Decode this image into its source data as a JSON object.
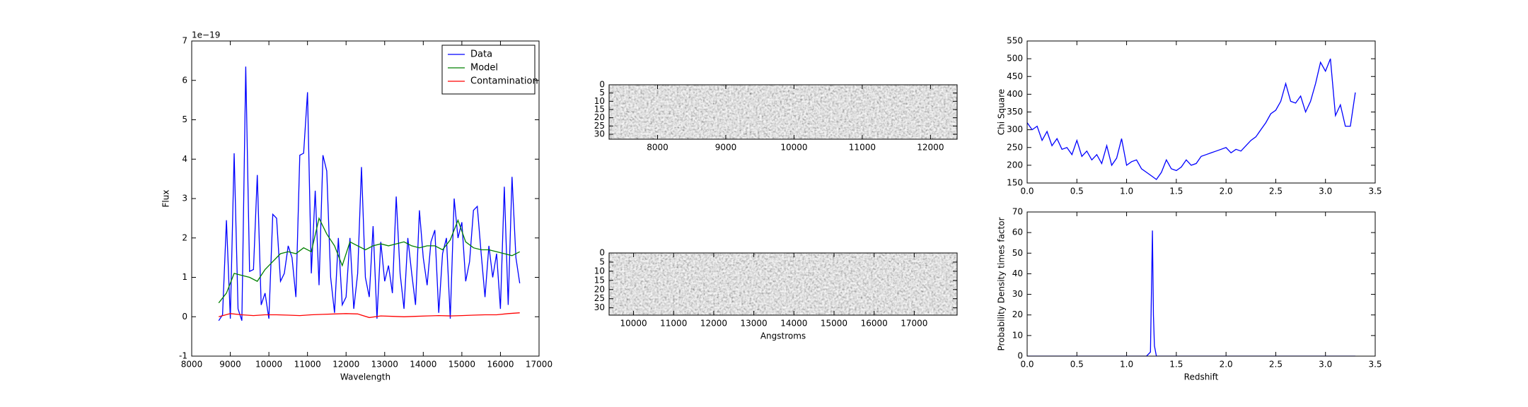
{
  "chart_data": [
    {
      "type": "line",
      "xlabel": "Wavelength",
      "ylabel": "Flux",
      "offset_text": "1e−19",
      "xlim": [
        8000,
        17000
      ],
      "xticks": [
        8000,
        9000,
        10000,
        11000,
        12000,
        13000,
        14000,
        15000,
        16000,
        17000
      ],
      "ylim": [
        -1,
        7
      ],
      "yticks": [
        -1,
        0,
        1,
        2,
        3,
        4,
        5,
        6,
        7
      ],
      "legend": "upper right",
      "series": [
        {
          "name": "Data",
          "color": "#0000ff",
          "x": [
            8700,
            8800,
            8900,
            9000,
            9100,
            9200,
            9300,
            9400,
            9500,
            9600,
            9700,
            9800,
            9900,
            10000,
            10100,
            10200,
            10300,
            10400,
            10500,
            10600,
            10700,
            10800,
            10900,
            11000,
            11100,
            11200,
            11300,
            11400,
            11500,
            11600,
            11700,
            11800,
            11900,
            12000,
            12100,
            12200,
            12300,
            12400,
            12500,
            12600,
            12700,
            12800,
            12900,
            13000,
            13100,
            13200,
            13300,
            13400,
            13500,
            13600,
            13700,
            13800,
            13900,
            14000,
            14100,
            14200,
            14300,
            14400,
            14500,
            14600,
            14700,
            14800,
            14900,
            15000,
            15100,
            15200,
            15300,
            15400,
            15500,
            15600,
            15700,
            15800,
            15900,
            16000,
            16100,
            16200,
            16300,
            16400,
            16500
          ],
          "values": [
            -0.1,
            0.05,
            2.45,
            -0.05,
            4.15,
            0.2,
            -0.1,
            6.35,
            1.15,
            1.2,
            3.6,
            0.3,
            0.6,
            -0.05,
            2.6,
            2.5,
            0.9,
            1.1,
            1.8,
            1.5,
            0.5,
            4.1,
            4.15,
            5.7,
            1.1,
            3.2,
            0.8,
            4.1,
            3.7,
            1.0,
            0.1,
            2.0,
            0.3,
            0.5,
            2.0,
            0.2,
            1.1,
            3.8,
            1.0,
            0.5,
            2.3,
            -0.05,
            1.9,
            0.9,
            1.3,
            0.6,
            3.05,
            1.1,
            0.2,
            2.0,
            1.1,
            0.3,
            2.7,
            1.5,
            0.8,
            1.9,
            2.2,
            0.1,
            1.6,
            2.0,
            -0.05,
            3.0,
            2.0,
            2.4,
            0.9,
            1.4,
            2.7,
            2.8,
            1.6,
            0.5,
            1.8,
            1.0,
            1.6,
            0.2,
            3.3,
            0.3,
            3.55,
            1.5,
            0.85
          ]
        },
        {
          "name": "Model",
          "color": "#008000",
          "x": [
            8700,
            8900,
            9100,
            9300,
            9500,
            9700,
            9900,
            10100,
            10300,
            10500,
            10700,
            10900,
            11100,
            11300,
            11500,
            11700,
            11900,
            12100,
            12300,
            12500,
            12700,
            12900,
            13100,
            13300,
            13500,
            13700,
            13900,
            14100,
            14300,
            14500,
            14700,
            14900,
            15100,
            15300,
            15500,
            15700,
            15900,
            16100,
            16300,
            16500
          ],
          "values": [
            0.35,
            0.6,
            1.1,
            1.05,
            1.0,
            0.9,
            1.2,
            1.4,
            1.6,
            1.65,
            1.6,
            1.75,
            1.65,
            2.5,
            2.1,
            1.8,
            1.3,
            1.9,
            1.8,
            1.7,
            1.8,
            1.85,
            1.8,
            1.85,
            1.9,
            1.8,
            1.75,
            1.8,
            1.8,
            1.7,
            1.95,
            2.45,
            1.9,
            1.75,
            1.7,
            1.7,
            1.65,
            1.6,
            1.55,
            1.65
          ]
        },
        {
          "name": "Contamination",
          "color": "#ff0000",
          "x": [
            8700,
            9000,
            9300,
            9600,
            9900,
            10200,
            10500,
            10800,
            11100,
            11400,
            11700,
            12000,
            12300,
            12600,
            12900,
            13200,
            13500,
            13800,
            14100,
            14400,
            14700,
            15000,
            15300,
            15600,
            15900,
            16200,
            16500
          ],
          "values": [
            0,
            0.08,
            0.05,
            0.03,
            0.05,
            0.05,
            0.04,
            0.03,
            0.05,
            0.06,
            0.07,
            0.08,
            0.07,
            -0.02,
            0.02,
            0.01,
            0,
            0.01,
            0.02,
            0.03,
            0.02,
            0.03,
            0.04,
            0.05,
            0.05,
            0.08,
            0.1
          ]
        }
      ]
    },
    {
      "type": "image",
      "y_inverted": true,
      "xlim": [
        7290,
        12390
      ],
      "xticks": [
        8000,
        9000,
        10000,
        11000,
        12000
      ],
      "ylim": [
        0,
        33
      ],
      "yticks": [
        0,
        5,
        10,
        15,
        20,
        25,
        30
      ]
    },
    {
      "type": "image",
      "y_inverted": true,
      "xlabel": "Angstroms",
      "xlim": [
        9390,
        18070
      ],
      "xticks": [
        10000,
        11000,
        12000,
        13000,
        14000,
        15000,
        16000,
        17000
      ],
      "ylim": [
        0,
        34
      ],
      "yticks": [
        0,
        5,
        10,
        15,
        20,
        25,
        30
      ]
    },
    {
      "type": "line",
      "ylabel": "Chi Square",
      "xlim": [
        0,
        3.5
      ],
      "xticks": [
        {
          "value": 0,
          "label": "0.0"
        },
        0.5,
        {
          "value": 1,
          "label": "1.0"
        },
        1.5,
        {
          "value": 2,
          "label": "2.0"
        },
        2.5,
        {
          "value": 3,
          "label": "3.0"
        },
        3.5
      ],
      "ylim": [
        150,
        550
      ],
      "yticks": [
        150,
        200,
        250,
        300,
        350,
        400,
        450,
        500,
        550
      ],
      "series": [
        {
          "color": "#0000ff",
          "x": [
            0,
            0.05,
            0.1,
            0.15,
            0.2,
            0.25,
            0.3,
            0.35,
            0.4,
            0.45,
            0.5,
            0.55,
            0.6,
            0.65,
            0.7,
            0.75,
            0.8,
            0.85,
            0.9,
            0.95,
            1.0,
            1.05,
            1.1,
            1.15,
            1.2,
            1.25,
            1.3,
            1.35,
            1.4,
            1.45,
            1.5,
            1.55,
            1.6,
            1.65,
            1.7,
            1.75,
            1.8,
            1.85,
            1.9,
            1.95,
            2.0,
            2.05,
            2.1,
            2.15,
            2.2,
            2.25,
            2.3,
            2.35,
            2.4,
            2.45,
            2.5,
            2.55,
            2.6,
            2.65,
            2.7,
            2.75,
            2.8,
            2.85,
            2.9,
            2.95,
            3.0,
            3.05,
            3.1,
            3.15,
            3.2,
            3.25,
            3.3
          ],
          "values": [
            320,
            300,
            310,
            270,
            295,
            255,
            275,
            245,
            250,
            230,
            270,
            225,
            240,
            215,
            230,
            205,
            255,
            200,
            220,
            275,
            200,
            210,
            215,
            190,
            180,
            170,
            160,
            180,
            215,
            190,
            185,
            195,
            215,
            200,
            205,
            225,
            230,
            235,
            240,
            245,
            250,
            235,
            245,
            240,
            255,
            270,
            280,
            300,
            320,
            345,
            355,
            380,
            430,
            380,
            375,
            395,
            350,
            380,
            430,
            490,
            465,
            500,
            340,
            370,
            310,
            310,
            405
          ]
        }
      ]
    },
    {
      "type": "line",
      "xlabel": "Redshift",
      "ylabel": "Probability Density times factor",
      "xlim": [
        0,
        3.5
      ],
      "xticks": [
        {
          "value": 0,
          "label": "0.0"
        },
        0.5,
        {
          "value": 1,
          "label": "1.0"
        },
        1.5,
        {
          "value": 2,
          "label": "2.0"
        },
        2.5,
        {
          "value": 3,
          "label": "3.0"
        },
        3.5
      ],
      "ylim": [
        0,
        70
      ],
      "yticks": [
        0,
        10,
        20,
        30,
        40,
        50,
        60,
        70
      ],
      "series": [
        {
          "color": "#0000ff",
          "x": [
            0,
            1.2,
            1.24,
            1.26,
            1.27,
            1.28,
            1.3,
            1.35,
            3.3
          ],
          "values": [
            0,
            0,
            2,
            61,
            20,
            5,
            0,
            0,
            0
          ]
        }
      ]
    }
  ]
}
